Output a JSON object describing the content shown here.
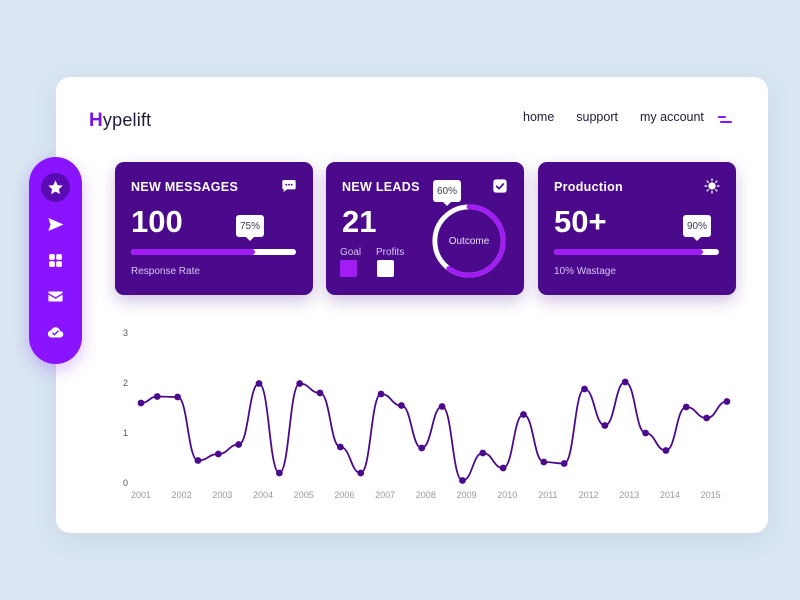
{
  "brand": {
    "initial": "H",
    "rest": "ypelift"
  },
  "nav": {
    "home": "home",
    "support": "support",
    "account": "my account"
  },
  "sidebar": {
    "items": [
      {
        "icon": "star-icon",
        "active": true
      },
      {
        "icon": "send-icon",
        "active": false
      },
      {
        "icon": "grid-icon",
        "active": false
      },
      {
        "icon": "mail-icon",
        "active": false
      },
      {
        "icon": "cloud-check-icon",
        "active": false
      }
    ]
  },
  "cards": {
    "messages": {
      "title": "NEW MESSAGES",
      "value": "100",
      "progress": 0.75,
      "progress_label": "75%",
      "caption": "Response Rate",
      "icon": "chat-icon"
    },
    "leads": {
      "title": "NEW LEADS",
      "value": "21",
      "goal_label": "Goal",
      "profits_label": "Profits",
      "ring_progress": 0.6,
      "ring_label": "60%",
      "ring_center": "Outcome",
      "icon": "checkbox-icon"
    },
    "production": {
      "title": "Production",
      "value": "50+",
      "progress": 0.9,
      "progress_label": "90%",
      "caption": "10% Wastage",
      "icon": "sun-icon"
    }
  },
  "colors": {
    "accent": "#8a14ff",
    "card_bg": "#4b0a8c",
    "line": "#4b0a8c",
    "fill": "#a21cf5"
  },
  "chart_data": {
    "type": "line",
    "title": "",
    "xlabel": "",
    "ylabel": "",
    "x_ticks": [
      "2001",
      "2002",
      "2003",
      "2004",
      "2005",
      "2006",
      "2007",
      "2008",
      "2009",
      "2010",
      "2011",
      "2012",
      "2013",
      "2014",
      "2015"
    ],
    "y_ticks": [
      "0",
      "1",
      "2",
      "3"
    ],
    "xlim": [
      2001,
      2015.5
    ],
    "ylim": [
      0,
      3
    ],
    "grid": false,
    "series": [
      {
        "x": [
          2001,
          2001.4,
          2001.9,
          2002.4,
          2002.9,
          2003.4,
          2003.9,
          2004.4,
          2004.9,
          2005.4,
          2005.9,
          2006.4,
          2006.9,
          2007.4,
          2007.9,
          2008.4,
          2008.9,
          2009.4,
          2009.9,
          2010.4,
          2010.9,
          2011.4,
          2011.9,
          2012.4,
          2012.9,
          2013.4,
          2013.9,
          2014.4,
          2014.9,
          2015.4
        ],
        "y": [
          1.6,
          1.73,
          1.72,
          0.45,
          0.58,
          0.77,
          1.99,
          0.2,
          1.99,
          1.8,
          0.72,
          0.2,
          1.78,
          1.55,
          0.7,
          1.53,
          0.05,
          0.6,
          0.3,
          1.37,
          0.42,
          0.39,
          1.88,
          1.15,
          2.02,
          1.0,
          0.65,
          1.52,
          1.3,
          1.63
        ]
      }
    ]
  }
}
